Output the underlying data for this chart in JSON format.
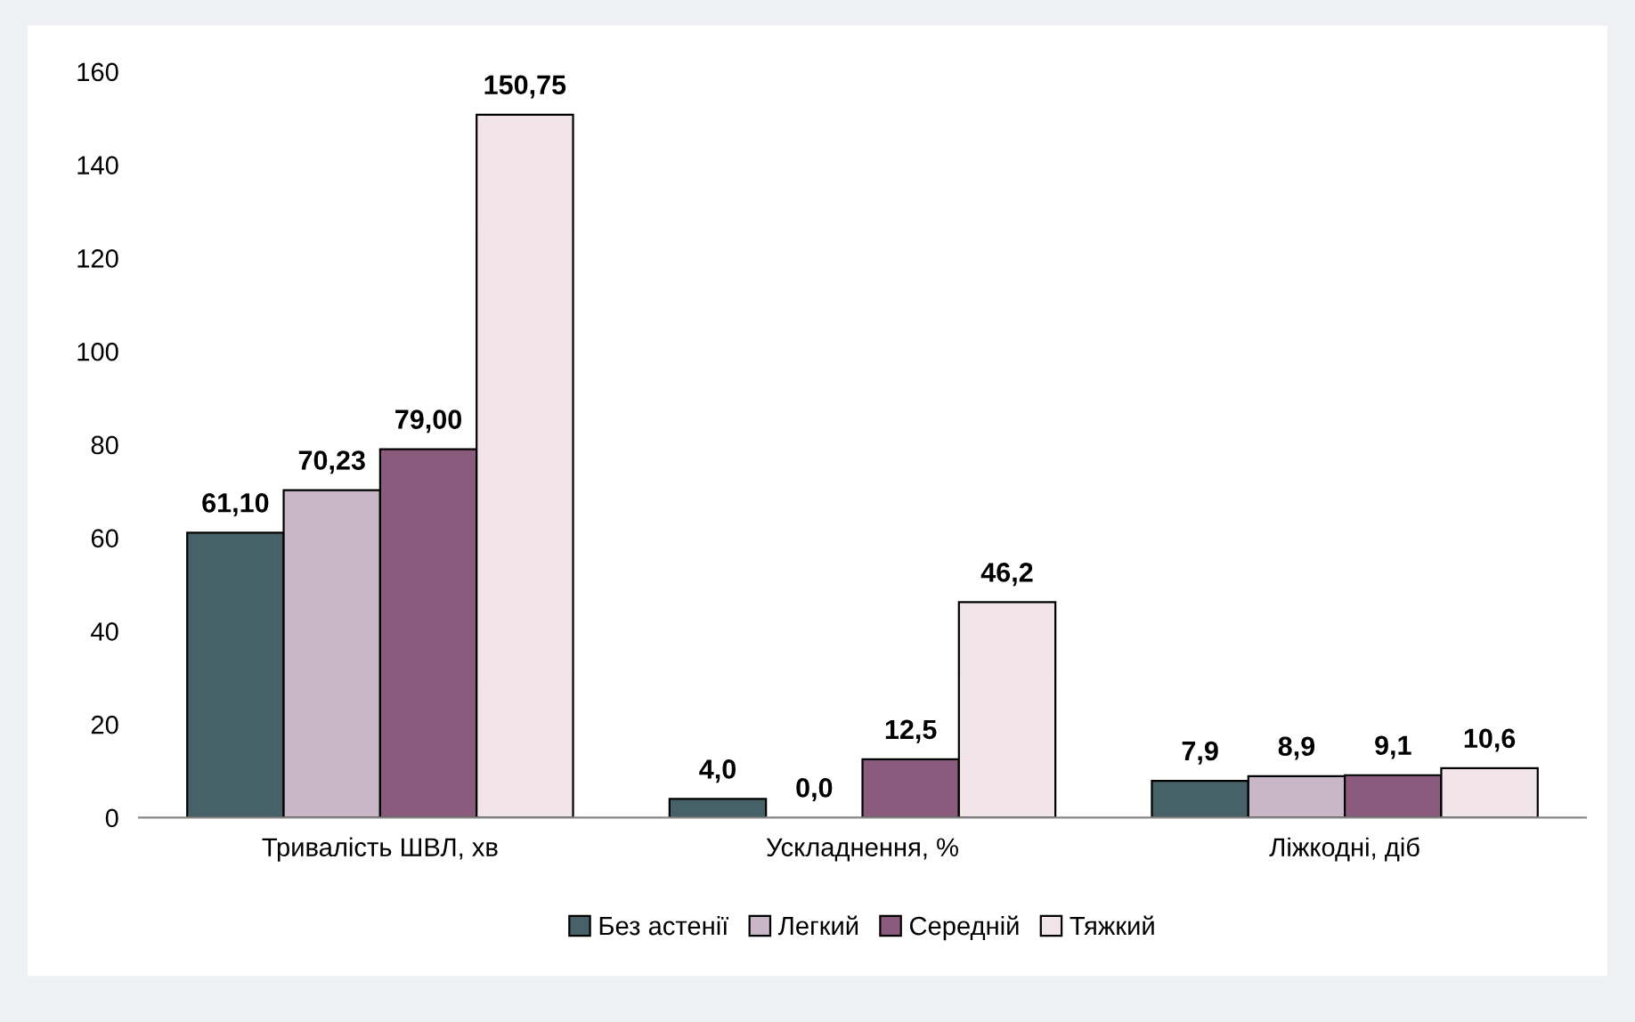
{
  "chart_data": {
    "type": "bar",
    "categories": [
      "Тривалість ШВЛ, хв",
      "Ускладнення, %",
      "Ліжкодні, діб"
    ],
    "series": [
      {
        "name": "Без астенії",
        "color": "#476168",
        "values": [
          61.1,
          4.0,
          7.9
        ],
        "value_labels": [
          "61,10",
          "4,0",
          "7,9"
        ]
      },
      {
        "name": "Легкий",
        "color": "#c9b6c6",
        "values": [
          70.23,
          0.0,
          8.9
        ],
        "value_labels": [
          "70,23",
          "0,0",
          "8,9"
        ]
      },
      {
        "name": "Середній",
        "color": "#8b5b7d",
        "values": [
          79.0,
          12.5,
          9.1
        ],
        "value_labels": [
          "79,00",
          "12,5",
          "9,1"
        ]
      },
      {
        "name": "Тяжкий",
        "color": "#f2e5ea",
        "values": [
          150.75,
          46.2,
          10.6
        ],
        "value_labels": [
          "150,75",
          "46,2",
          "10,6"
        ]
      }
    ],
    "ylim": [
      0,
      160
    ],
    "yticks": [
      0,
      20,
      40,
      60,
      80,
      100,
      120,
      140,
      160
    ],
    "grid": false,
    "legend": "bottom"
  }
}
